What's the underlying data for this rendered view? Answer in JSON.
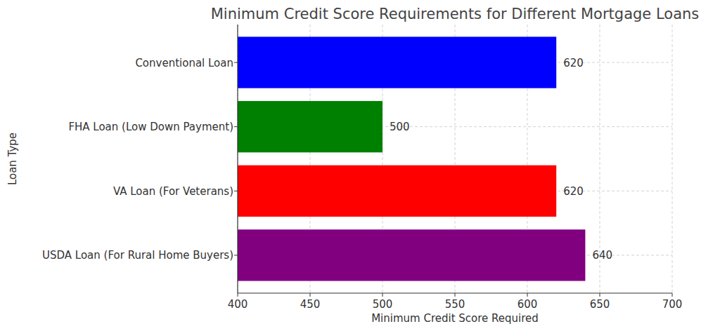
{
  "chart_data": {
    "type": "bar",
    "orientation": "horizontal",
    "title": "Minimum Credit Score Requirements for Different Mortgage Loans",
    "x_label": "Minimum Credit Score Required",
    "y_label": "Loan Type",
    "categories": [
      "Conventional Loan",
      "FHA Loan (Low Down Payment)",
      "VA Loan (For Veterans)",
      "USDA Loan (For Rural Home Buyers)"
    ],
    "values": [
      620,
      500,
      620,
      640
    ],
    "colors": [
      "#0000ff",
      "#008000",
      "#ff0000",
      "#800080"
    ],
    "xlim": [
      400,
      700
    ],
    "xticks": [
      400,
      450,
      500,
      550,
      600,
      650,
      700
    ],
    "grid": true,
    "data_labels": true
  }
}
